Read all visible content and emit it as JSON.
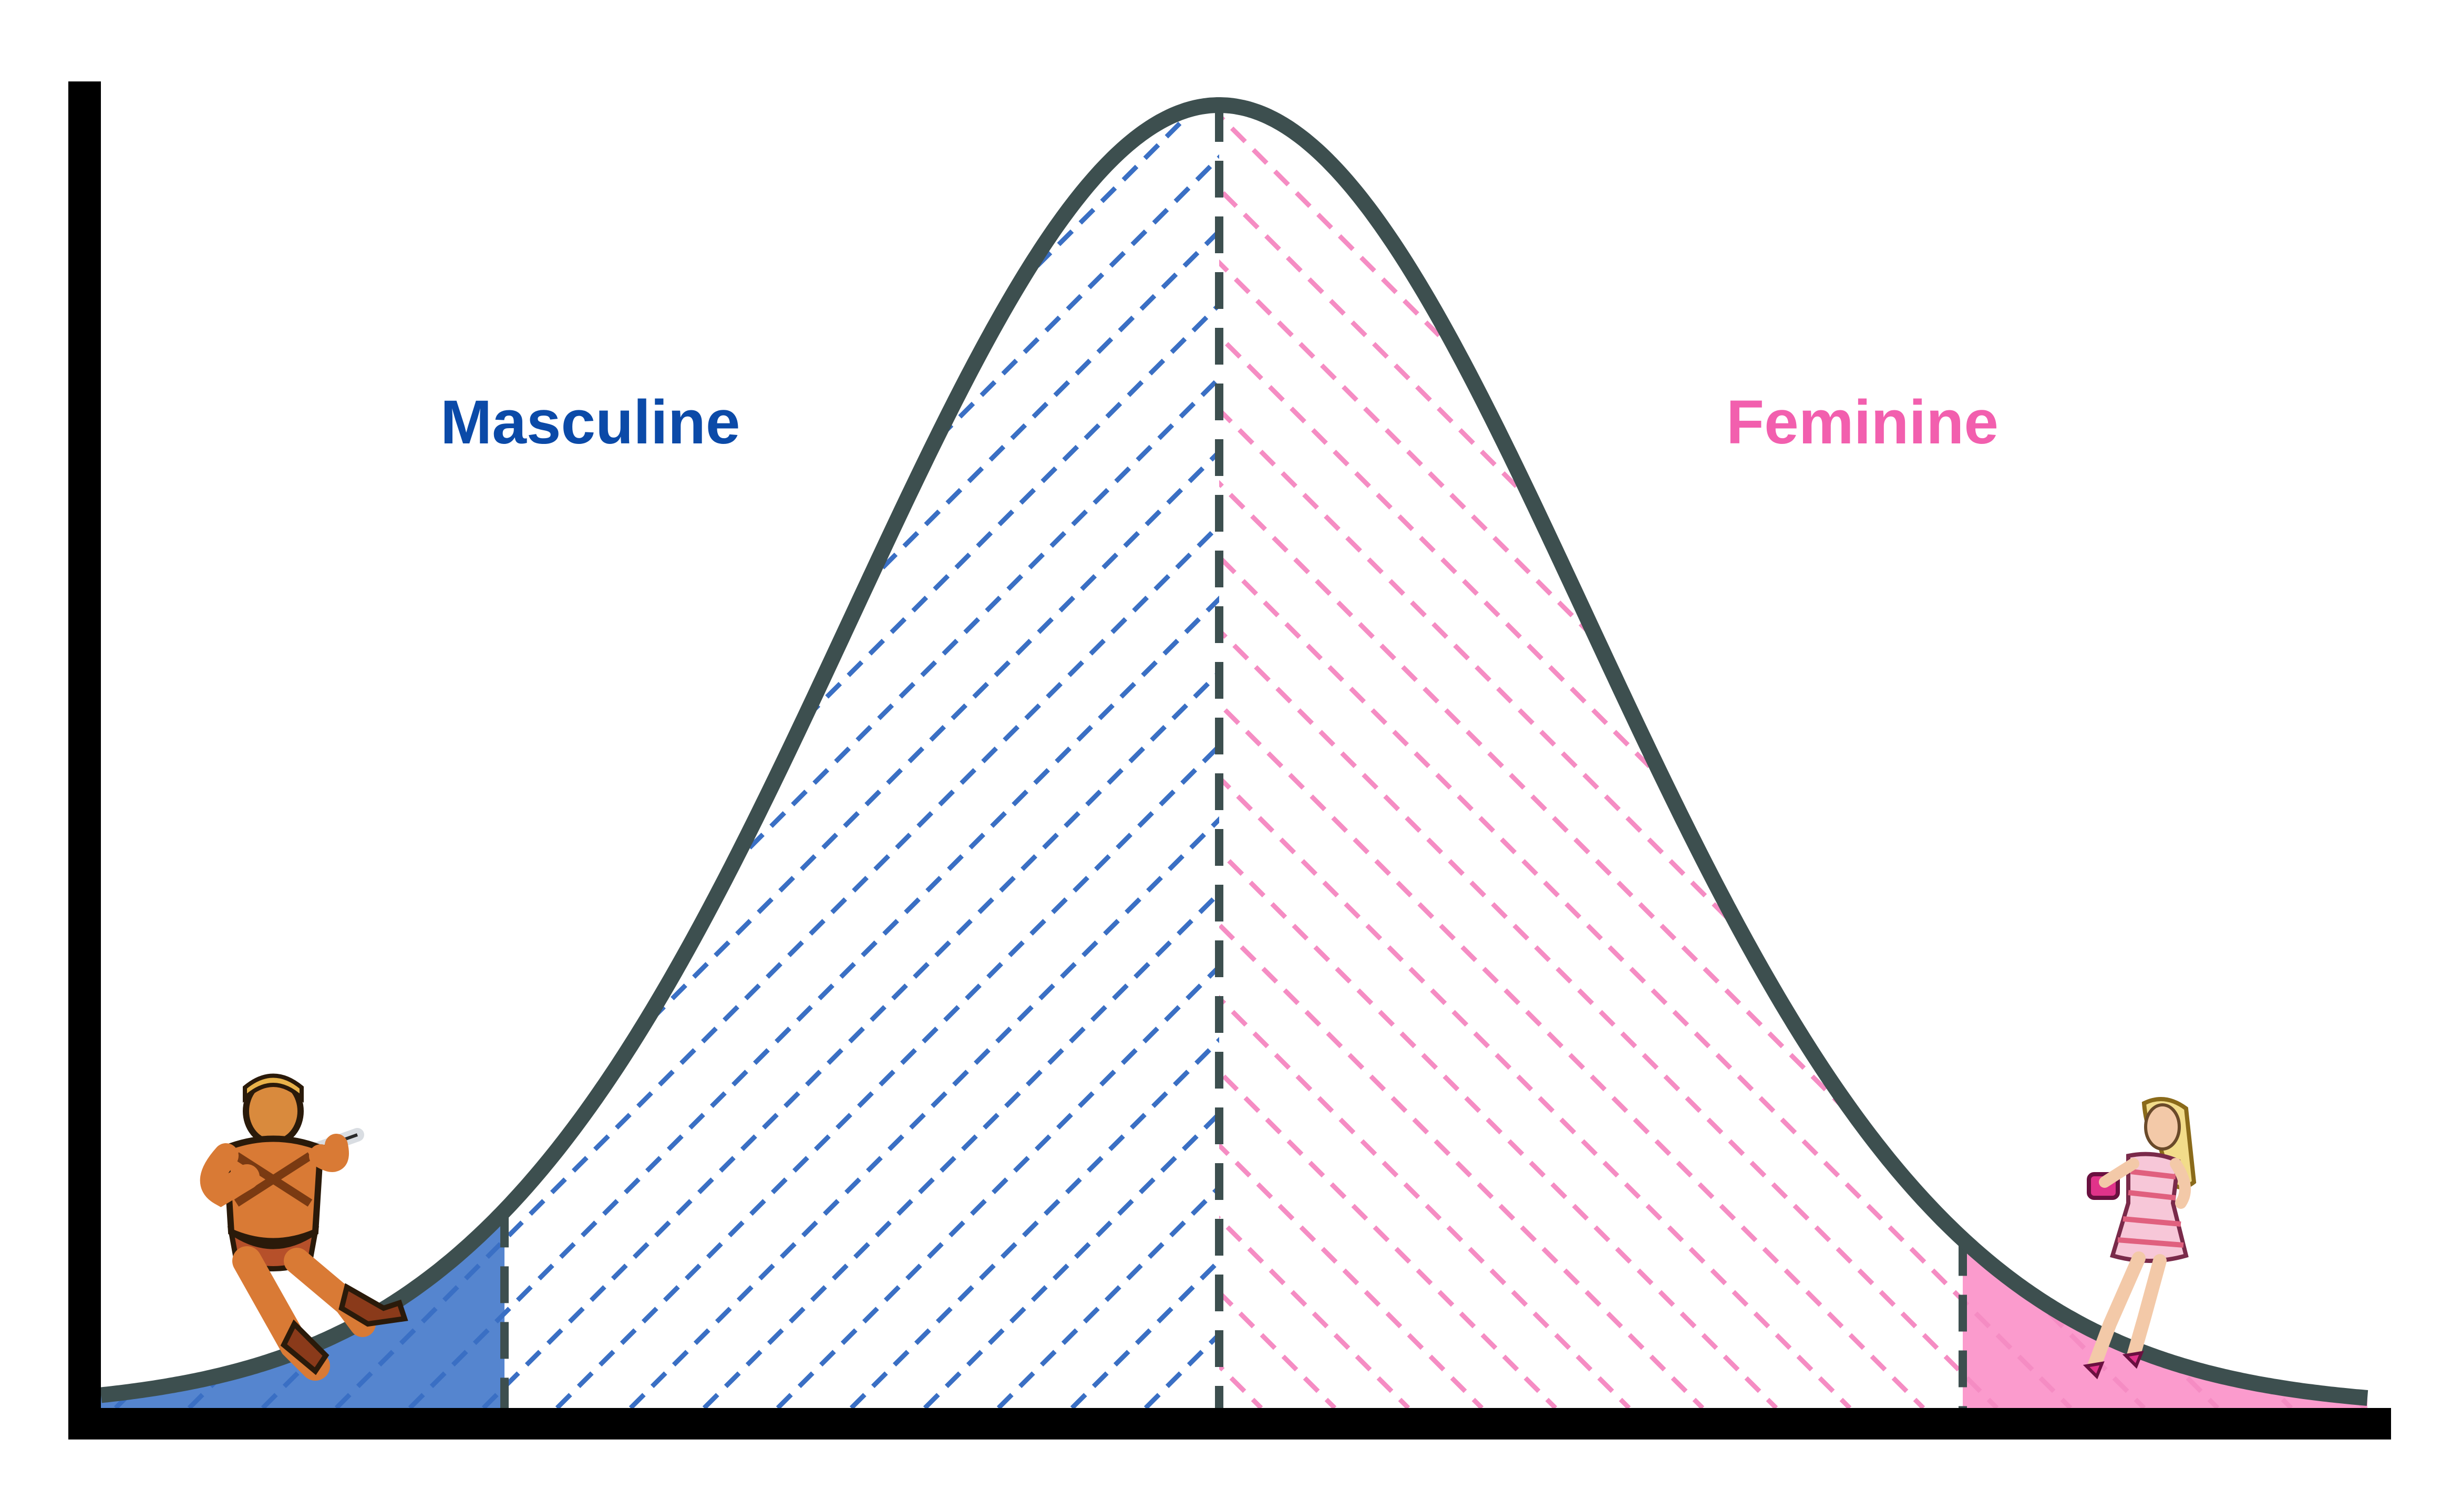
{
  "labels": {
    "left": "Masculine",
    "right": "Feminine"
  },
  "colors": {
    "axis": "#000000",
    "curve": "#3d4f4f",
    "masculine": "#0b4aa8",
    "masculine_hatch": "#3a6fc4",
    "masculine_fill": "#5585cf",
    "feminine": "#f25fae",
    "feminine_hatch": "#f58cc3",
    "feminine_fill": "#fb9bcd"
  },
  "figures": {
    "left": "muscular-warrior-figure",
    "right": "fashion-doll-figure"
  }
}
